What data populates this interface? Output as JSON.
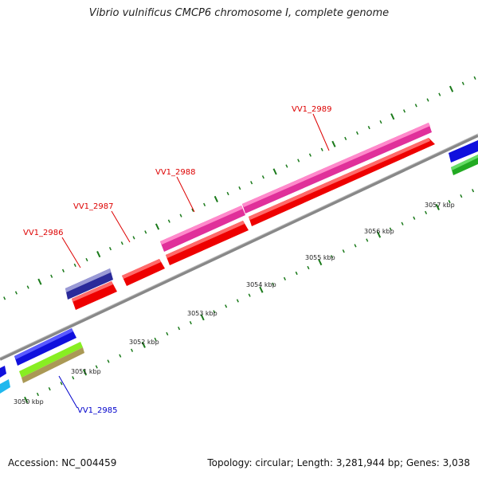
{
  "title": "Vibrio vulnificus CMCP6 chromosome I, complete genome",
  "footer": {
    "accession": "Accession: NC_004459",
    "stats": "Topology: circular; Length: 3,281,944 bp; Genes: 3,038"
  },
  "kbp_labels": [
    "3050 kbp",
    "3051 kbp",
    "3052 kbp",
    "3053 kbp",
    "3054 kbp",
    "3055 kbp",
    "3056 kbp",
    "3057 kbp"
  ],
  "gene_labels": [
    {
      "text": "VV1_2985",
      "color": "#0000cc"
    },
    {
      "text": "VV1_2986",
      "color": "#dd0000"
    },
    {
      "text": "VV1_2987",
      "color": "#dd0000"
    },
    {
      "text": "VV1_2988",
      "color": "#dd0000"
    },
    {
      "text": "VV1_2989",
      "color": "#dd0000"
    }
  ],
  "colors": {
    "backbone": "#888888",
    "tick": "#1a7a1a",
    "cds_forward": "#ee0000",
    "gene_pink": "#e0309a",
    "cds_blue": "#1010dd",
    "cyan": "#20b8ee",
    "green": "#22aa22"
  }
}
